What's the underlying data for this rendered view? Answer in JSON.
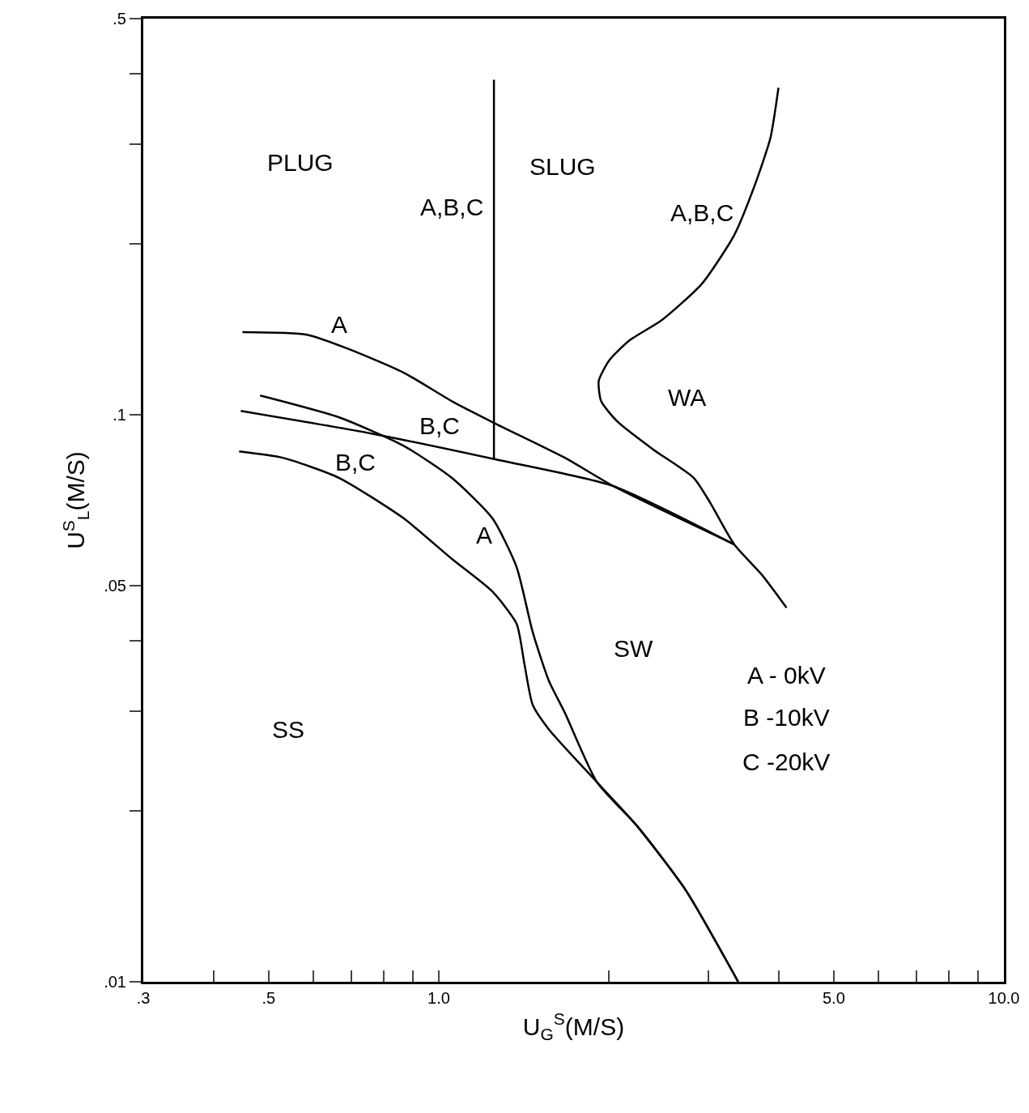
{
  "chart_data": {
    "type": "line",
    "xlabel": "U$_{G}$$^{S}$(M/S)",
    "ylabel": "U$^{S}$$_{L}$(M/S)",
    "log": "xy",
    "marker": "none",
    "line_style": "solid",
    "xlim": [
      0.3,
      10.0
    ],
    "ylim": [
      0.01,
      0.5
    ],
    "xticks": [
      {
        "value": 0.3,
        "label": ".3"
      },
      {
        "value": 0.4,
        "label": null
      },
      {
        "value": 0.5,
        "label": ".5"
      },
      {
        "value": 0.6,
        "label": null
      },
      {
        "value": 0.7,
        "label": null
      },
      {
        "value": 0.8,
        "label": null
      },
      {
        "value": 0.9,
        "label": null
      },
      {
        "value": 1.0,
        "label": "1.0"
      },
      {
        "value": 2,
        "label": null
      },
      {
        "value": 3,
        "label": null
      },
      {
        "value": 4,
        "label": null
      },
      {
        "value": 5.0,
        "label": "5.0"
      },
      {
        "value": 6,
        "label": null
      },
      {
        "value": 7,
        "label": null
      },
      {
        "value": 8,
        "label": null
      },
      {
        "value": 9,
        "label": null
      },
      {
        "value": 10.0,
        "label": "10.0"
      }
    ],
    "yticks": [
      {
        "value": 0.01,
        "label": ".01"
      },
      {
        "value": 0.02,
        "label": null
      },
      {
        "value": 0.03,
        "label": null
      },
      {
        "value": 0.04,
        "label": null
      },
      {
        "value": 0.05,
        "label": ".05"
      },
      {
        "value": 0.1,
        "label": ".1"
      },
      {
        "value": 0.2,
        "label": null
      },
      {
        "value": 0.3,
        "label": null
      },
      {
        "value": 0.4,
        "label": null
      },
      {
        "value": 0.5,
        "label": ".5"
      }
    ],
    "series": [
      {
        "color": "#000000",
        "x": [
          1.252,
          1.252
        ],
        "values": [
          0.39,
          0.0834
        ]
      },
      {
        "color": "#000000",
        "x": [
          0.4494,
          0.5843,
          0.6886,
          0.8666,
          1.055,
          1.252,
          1.672,
          2.035,
          3.332
        ],
        "values": [
          0.1399,
          0.1385,
          0.131,
          0.1187,
          0.1057,
          0.0968,
          0.084,
          0.0749,
          0.0591
        ]
      },
      {
        "color": "#000000",
        "x": [
          0.4463,
          0.7598,
          1.264,
          2.035,
          3.332
        ],
        "values": [
          0.1016,
          0.0927,
          0.0834,
          0.0749,
          0.0591
        ]
      },
      {
        "color": "#000000",
        "x": [
          3.991,
          3.862,
          3.617,
          3.332,
          2.921,
          2.48,
          2.174,
          2.002,
          1.919,
          1.938,
          2.069,
          2.399,
          2.827,
          3.019,
          3.332,
          3.738,
          4.124
        ],
        "values": [
          0.3776,
          0.308,
          0.2529,
          0.2075,
          0.1703,
          0.1469,
          0.1353,
          0.1247,
          0.1148,
          0.1057,
          0.0974,
          0.0868,
          0.0774,
          0.0701,
          0.0591,
          0.0521,
          0.0457
        ]
      },
      {
        "color": "#000000",
        "x": [
          0.4829,
          0.6663,
          0.8666,
          1.055,
          1.244,
          1.373,
          1.466,
          1.565,
          1.672,
          1.905,
          2.246,
          2.736,
          3.387
        ],
        "values": [
          0.1082,
          0.099,
          0.0882,
          0.0774,
          0.0657,
          0.0539,
          0.0414,
          0.034,
          0.0298,
          0.0225,
          0.0188,
          0.0145,
          0.01
        ]
      },
      {
        "color": "#000000",
        "x": [
          0.4433,
          0.5296,
          0.6663,
          0.8666,
          1.055,
          1.244,
          1.373,
          1.418,
          1.466,
          1.565,
          1.905,
          2.246,
          2.736,
          3.387
        ],
        "values": [
          0.0862,
          0.084,
          0.0774,
          0.0657,
          0.0557,
          0.0488,
          0.0428,
          0.0363,
          0.0308,
          0.0279,
          0.0225,
          0.0188,
          0.0145,
          0.01
        ]
      }
    ],
    "annotations": [
      "PLUG",
      "SLUG",
      "A,B,C",
      "A,B,C",
      "A",
      "WA",
      "B,C",
      "B,C",
      "A",
      "SW",
      "SS",
      "A - 0kV",
      "B -10kV",
      "C -20kV"
    ]
  }
}
